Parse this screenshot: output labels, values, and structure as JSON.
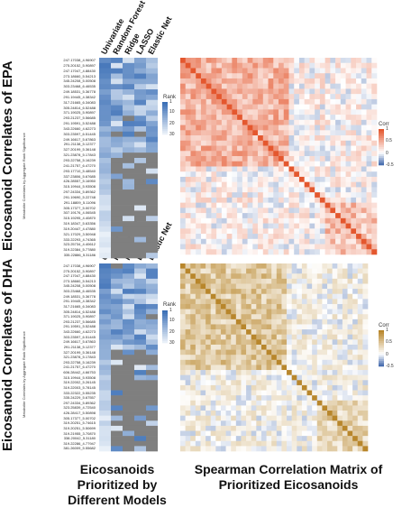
{
  "chart_data": [
    {
      "type": "heatmap",
      "panel": "EPA model ranks",
      "title": "Eicosanoid Correlates of EPA",
      "ylabel": "Metabolite Correlates by Aggregate Rank Significance",
      "models": [
        "Univariate",
        "Random Forest",
        "Ridge",
        "LASSO",
        "Elastic Net"
      ],
      "metabolites": [
        "247.17038_4.96907",
        "275.20152_5.90897",
        "247.17047_4.88430",
        "273.18660_5.54213",
        "345.24208_5.00508",
        "303.23468_6.46535",
        "249.18531_5.36778",
        "291.19445_4.38342",
        "317.21665_6.34083",
        "305.24814_6.52488",
        "371.19025_5.90897",
        "293.21237_5.56685",
        "291.19591_5.52488",
        "343.22660_4.62273",
        "303.23597_6.51445",
        "249.16617_5.67863",
        "291.21138_5.12377",
        "327.20199_5.36148",
        "321.23878_5.17843",
        "293.22758_5.16239",
        "241.21757_6.47270",
        "293.17710_5.48540",
        "337.23806_5.67685",
        "426.28557_5.16950",
        "315.19944_5.93508",
        "297.24334_5.89362",
        "291.19690_5.22748",
        "291.18809_5.11096",
        "305.17377_5.00702",
        "307.19176_4.06545",
        "315.19295_4.40870",
        "319.18347_5.63356",
        "319.20447_4.47880",
        "321.17029_3.50948",
        "333.22293_4.74365",
        "323.25734_4.40612",
        "319.22384_5.77880",
        "335.22886_5.31186"
      ],
      "rank_legend_title": "Rank",
      "rank_scale": [
        1,
        10,
        20,
        30
      ]
    },
    {
      "type": "heatmap",
      "panel": "EPA correlation matrix",
      "legend_title": "Corr",
      "scale": [
        -0.5,
        0,
        0.5,
        1
      ]
    },
    {
      "type": "heatmap",
      "panel": "DHA model ranks",
      "title": "Eicosanoid Correlates of DHA",
      "ylabel": "Metabolite Correlates by Aggregate Rank Significance",
      "models": [
        "Univariate",
        "Random Forest",
        "Ridge",
        "LASSO",
        "Elastic Net"
      ],
      "metabolites": [
        "247.17038_4.96907",
        "275.20152_5.90897",
        "247.17047_4.88430",
        "273.18660_5.54213",
        "345.24208_5.00508",
        "303.23468_6.46535",
        "249.18531_5.36778",
        "291.19445_4.38342",
        "317.21665_6.34083",
        "305.24814_6.52488",
        "371.19025_5.90897",
        "293.21237_5.56685",
        "291.19591_5.52488",
        "343.22660_4.62273",
        "303.23597_6.51445",
        "249.16617_5.67863",
        "291.21138_5.12377",
        "327.20199_5.36148",
        "321.23878_5.17843",
        "293.22758_5.16239",
        "241.21757_6.47270",
        "606.28442_4.66753",
        "315.19944_5.93508",
        "319.22002_5.26145",
        "319.22003_5.78145",
        "333.22322_5.55235",
        "335.24229_5.67557",
        "297.24334_5.89362",
        "323.25839_4.72540",
        "426.28417_5.50898",
        "305.17377_5.00702",
        "319.20251_5.74615",
        "319.20251_5.50699",
        "319.21955_3.70870",
        "338.20042_5.31180",
        "319.22286_4.77947",
        "381.26009_5.55682"
      ],
      "rank_legend_title": "Rank",
      "rank_scale": [
        1,
        10,
        20,
        30
      ]
    },
    {
      "type": "heatmap",
      "panel": "DHA correlation matrix",
      "legend_title": "Corr",
      "scale": [
        -0.5,
        0,
        0.5,
        1
      ]
    }
  ],
  "texts": {
    "epa_title": "Eicosanoid Correlates of EPA",
    "dha_title": "Eicosanoid Correlates of DHA",
    "axis_label": "Metabolite Correlates by Aggregate Rank Significance",
    "bottom_left": "Eicosanoids Prioritized by Different Models",
    "bottom_right": "Spearman Correlation Matrix of Prioritized Eicosanoids",
    "rank_title": "Rank",
    "corr_title": "Corr"
  },
  "colors": {
    "rank_best": "#3b6fb6",
    "rank_worst": "#e9f0f8",
    "missing": "#7f7f7f",
    "epa_pos": "#e4572e",
    "dha_pos": "#b8862b",
    "neg": "#4a6fb0"
  }
}
